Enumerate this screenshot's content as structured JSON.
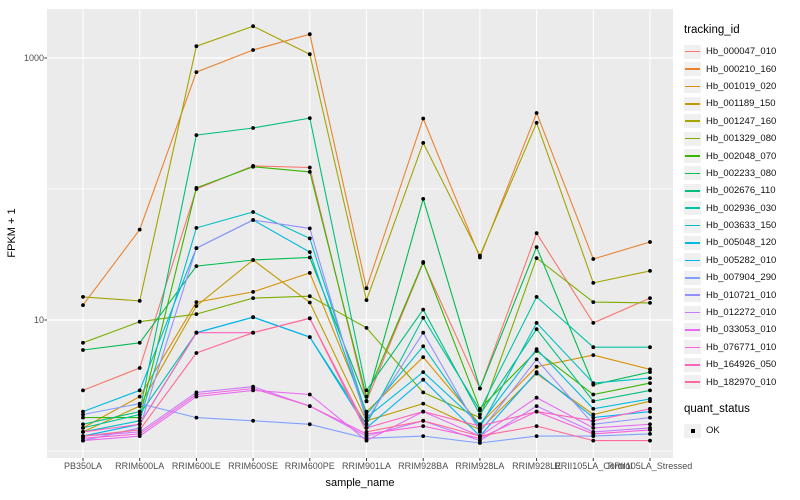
{
  "figure": {
    "panel_background": "#EBEBEB",
    "grid_color": "#FFFFFF",
    "point_color": "#000000",
    "axis_text_color": "#4D4D4D",
    "axis_title_color": "#000000"
  },
  "axes": {
    "x_title": "sample_name",
    "y_title": "FPKM + 1",
    "y_tick_labels": [
      "1000",
      "10"
    ]
  },
  "legend": {
    "tracking_title": "tracking_id",
    "quant_title": "quant_status",
    "quant_items": [
      {
        "label": "OK"
      }
    ]
  },
  "chart_data": {
    "type": "line",
    "title": "",
    "xlabel": "sample_name",
    "ylabel": "FPKM + 1",
    "y_scale": "log10",
    "y_ticks_labeled": [
      10,
      1000
    ],
    "y_grid_major": [
      10,
      1000
    ],
    "y_grid_minor": [
      1,
      100
    ],
    "ylim": [
      1,
      2300
    ],
    "grid": true,
    "legend_position": "right",
    "point_marker": {
      "label": "OK",
      "color": "#000000"
    },
    "categories": [
      "PB350LA",
      "RRIM600LA",
      "RRIM600LE",
      "RRIM600SE",
      "RRIM600PE",
      "RRIM901LA",
      "RRIM928BA",
      "RRIM928LA",
      "RRIM928LE",
      "RRII105LA_Control",
      "RRII105LA_Stressed"
    ],
    "series": [
      {
        "name": "Hb_000047_010",
        "color": "#F8766D",
        "values": [
          2.9,
          4.3,
          100,
          150,
          146,
          2.4,
          27.3,
          3.0,
          46,
          9.5,
          14.7
        ]
      },
      {
        "name": "Hb_000210_160",
        "color": "#EA8331",
        "values": [
          13,
          49,
          780,
          1150,
          1520,
          17.5,
          345,
          30,
          380,
          29.2,
          39.4
        ]
      },
      {
        "name": "Hb_001019_020",
        "color": "#D89000",
        "values": [
          1.5,
          2.6,
          13.7,
          16.4,
          22.9,
          2.0,
          5.2,
          1.6,
          4.4,
          5.4,
          4.2
        ]
      },
      {
        "name": "Hb_001189_150",
        "color": "#C09B00",
        "values": [
          1.4,
          2.2,
          12.8,
          28.7,
          13.6,
          1.7,
          2.3,
          1.45,
          3.9,
          1.9,
          2.4
        ]
      },
      {
        "name": "Hb_001247_160",
        "color": "#A3A500",
        "values": [
          15,
          14,
          1230,
          1750,
          1070,
          14.2,
          225,
          31,
          320,
          19.2,
          23.7
        ]
      },
      {
        "name": "Hb_001329_080",
        "color": "#7CAE00",
        "values": [
          6.7,
          9.7,
          11.1,
          14.7,
          15.2,
          8.7,
          2.8,
          1.8,
          29.7,
          13.7,
          13.5
        ]
      },
      {
        "name": "Hb_002048_070",
        "color": "#39B600",
        "values": [
          1.8,
          1.8,
          102,
          148,
          135,
          2.6,
          27.7,
          2.1,
          5.8,
          2.7,
          3.3
        ]
      },
      {
        "name": "Hb_002233_080",
        "color": "#00BB4E",
        "values": [
          5.9,
          6.7,
          25.8,
          28.7,
          30,
          2.4,
          84,
          3.0,
          36,
          3.2,
          4.0
        ]
      },
      {
        "name": "Hb_002676_110",
        "color": "#00BF7D",
        "values": [
          1.6,
          2.0,
          258,
          292,
          348,
          2.9,
          12,
          1.9,
          8.5,
          2.4,
          2.9
        ]
      },
      {
        "name": "Hb_002936_030",
        "color": "#00C1A3",
        "values": [
          1.5,
          1.9,
          8.0,
          10.5,
          7.4,
          1.6,
          10.4,
          2.05,
          15,
          6.2,
          6.2
        ]
      },
      {
        "name": "Hb_003633_150",
        "color": "#00BFC4",
        "values": [
          1.4,
          1.7,
          50.5,
          66.7,
          42,
          1.9,
          6.3,
          1.5,
          9.5,
          3.3,
          3.6
        ]
      },
      {
        "name": "Hb_005048_120",
        "color": "#00BAE0",
        "values": [
          2.0,
          2.9,
          35.4,
          58,
          33,
          1.8,
          4.0,
          1.6,
          6.0,
          2.1,
          2.5
        ]
      },
      {
        "name": "Hb_005282_010",
        "color": "#00B0F6",
        "values": [
          1.3,
          1.6,
          8.0,
          10.5,
          7.4,
          1.5,
          3.5,
          1.3,
          4.0,
          1.8,
          2.0
        ]
      },
      {
        "name": "Hb_007904_290",
        "color": "#7FA2FF",
        "values": [
          1.9,
          2.3,
          1.8,
          1.7,
          1.6,
          1.25,
          1.3,
          1.15,
          1.3,
          1.3,
          1.35
        ]
      },
      {
        "name": "Hb_010721_010",
        "color": "#9590FF",
        "values": [
          1.2,
          1.5,
          35.4,
          58,
          50,
          1.7,
          8.0,
          1.4,
          5.0,
          1.6,
          1.8
        ]
      },
      {
        "name": "Hb_012272_010",
        "color": "#C77CFF",
        "values": [
          1.3,
          1.4,
          2.8,
          3.1,
          2.2,
          1.3,
          1.7,
          1.2,
          2.2,
          1.4,
          1.5
        ]
      },
      {
        "name": "Hb_033053_010",
        "color": "#E76BF3",
        "values": [
          1.2,
          1.3,
          2.6,
          2.9,
          2.7,
          1.2,
          2.0,
          1.3,
          2.55,
          1.5,
          1.6
        ]
      },
      {
        "name": "Hb_076771_010",
        "color": "#FA62DB",
        "values": [
          1.25,
          1.35,
          2.7,
          3.0,
          2.2,
          1.35,
          1.55,
          1.25,
          2.0,
          1.35,
          1.45
        ]
      },
      {
        "name": "Hb_164926_050",
        "color": "#FF62BC",
        "values": [
          1.4,
          1.6,
          8.0,
          8.0,
          10.3,
          1.5,
          2.0,
          1.55,
          2.0,
          1.7,
          2.1
        ]
      },
      {
        "name": "Hb_182970_010",
        "color": "#FF6A98",
        "values": [
          1.3,
          1.45,
          5.6,
          8.0,
          10.3,
          1.4,
          1.7,
          1.3,
          1.55,
          1.2,
          1.2
        ]
      }
    ]
  }
}
